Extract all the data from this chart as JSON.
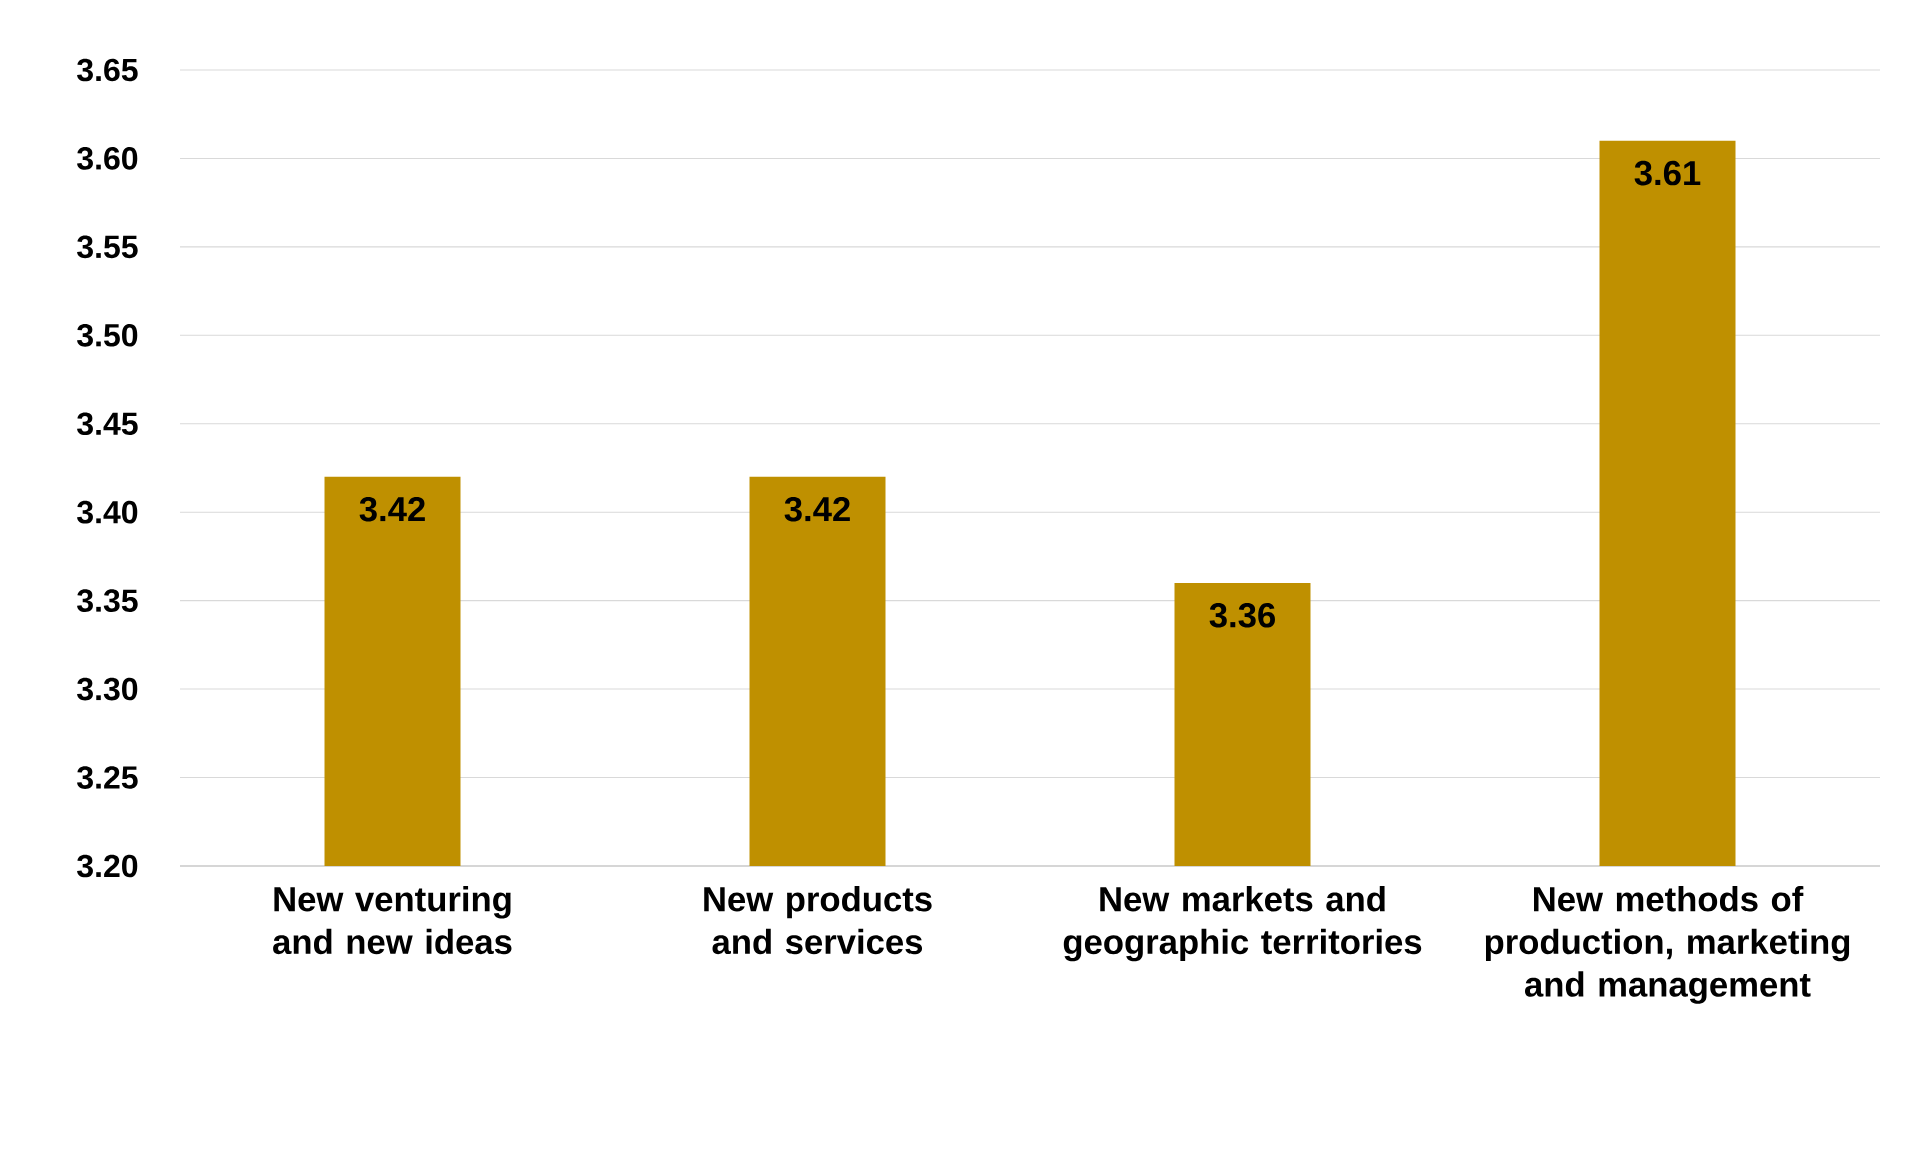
{
  "chart_data": {
    "type": "bar",
    "categories": [
      "New venturing and new ideas",
      "New products and services",
      "New markets and geographic territories",
      "New methods of production, marketing and management"
    ],
    "values": [
      3.42,
      3.42,
      3.36,
      3.61
    ],
    "color": "#bf9000",
    "data_labels": true,
    "ylim": [
      3.2,
      3.65
    ],
    "yticks": [
      {
        "value": 3.2,
        "label": "3.20"
      },
      {
        "value": 3.25,
        "label": "3.25"
      },
      {
        "value": 3.3,
        "label": "3.30"
      },
      {
        "value": 3.35,
        "label": "3.35"
      },
      {
        "value": 3.4,
        "label": "3.40"
      },
      {
        "value": 3.45,
        "label": "3.45"
      },
      {
        "value": 3.5,
        "label": "3.50"
      },
      {
        "value": 3.55,
        "label": "3.55"
      },
      {
        "value": 3.6,
        "label": "3.60"
      },
      {
        "value": 3.65,
        "label": "3.65"
      }
    ],
    "grid": "y"
  }
}
